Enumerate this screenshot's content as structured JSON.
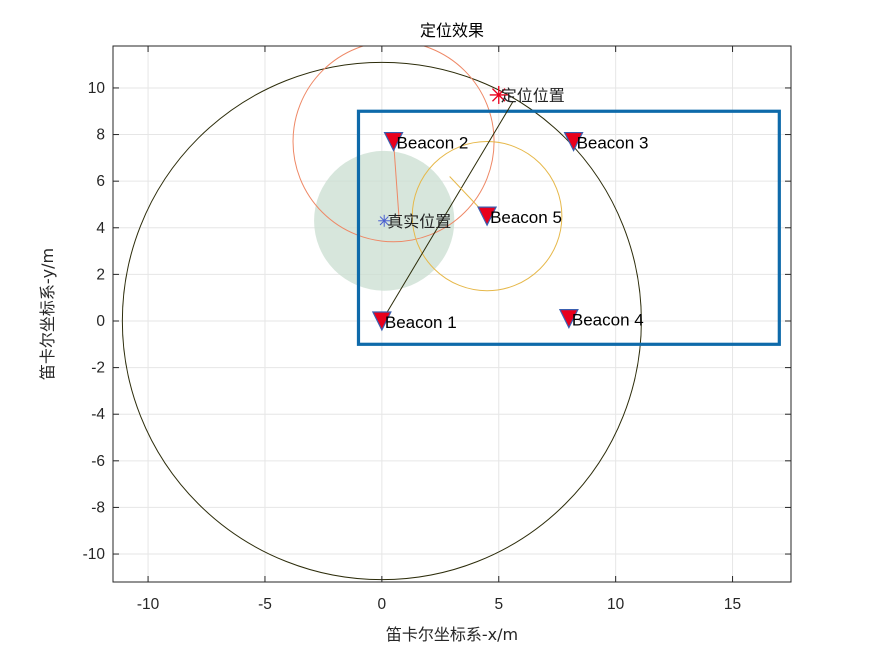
{
  "chart_data": {
    "type": "scatter",
    "title": "定位效果",
    "xlabel": "笛卡尔坐标系-x/m",
    "ylabel": "笛卡尔坐标系-y/m",
    "xlim": [
      -11.5,
      17.5
    ],
    "ylim": [
      -11.2,
      11.8
    ],
    "xticks": [
      -10,
      -5,
      0,
      5,
      10,
      15
    ],
    "yticks": [
      -10,
      -8,
      -6,
      -4,
      -2,
      0,
      2,
      4,
      6,
      8,
      10
    ],
    "grid": true,
    "beacons": [
      {
        "label": "Beacon 1",
        "x": 0,
        "y": 0
      },
      {
        "label": "Beacon 2",
        "x": 0.5,
        "y": 7.7
      },
      {
        "label": "Beacon 3",
        "x": 8.2,
        "y": 7.7
      },
      {
        "label": "Beacon 4",
        "x": 8.0,
        "y": 0.1
      },
      {
        "label": "Beacon 5",
        "x": 4.5,
        "y": 4.5
      }
    ],
    "estimated_position": {
      "label": "定位位置",
      "x": 5.0,
      "y": 9.7
    },
    "true_position": {
      "label": "真实位置",
      "x": 0.1,
      "y": 4.3
    },
    "true_position_radius": 3.0,
    "range_circles": [
      {
        "beacon": "Beacon 1",
        "radius": 11.1,
        "color": "#2c2c0a"
      },
      {
        "beacon": "Beacon 2",
        "radius": 4.3,
        "color": "#ee8866"
      },
      {
        "beacon": "Beacon 5",
        "radius": 3.2,
        "color": "#e6b84a"
      }
    ],
    "region": {
      "x_min": -1,
      "x_max": 17,
      "y_min": -1,
      "y_max": 9
    },
    "colors": {
      "region": "#0e6aaa",
      "beacon_fill": "#e8001c",
      "beacon_edge": "#3a5fb0",
      "estimate": "#e8001c",
      "true_marker": "#4a5fd0",
      "true_disk": "#c9ddd0",
      "grid": "#e6e6e6"
    }
  }
}
